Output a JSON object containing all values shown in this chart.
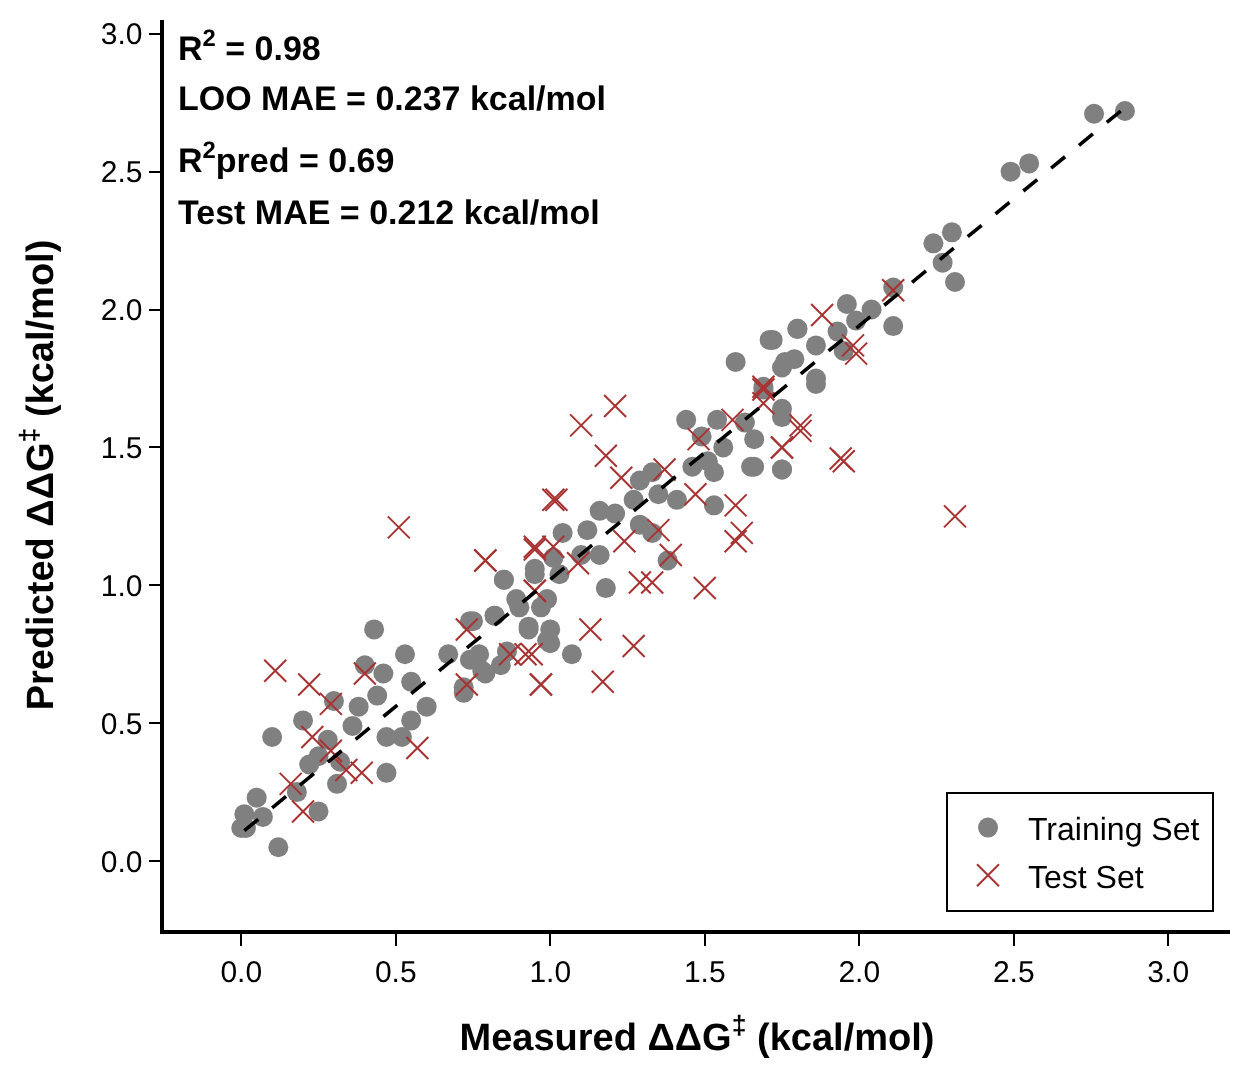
{
  "chart_data": {
    "type": "scatter",
    "xlabel": "Measured ΔΔG$^{‡}$ (kcal/mol)",
    "ylabel": "Predicted ΔΔG$^{‡}$ (kcal/mol)",
    "annotations": [
      "R$^{2}$ = 0.98",
      "LOO MAE = 0.237 kcal/mol",
      "R$^{2}$pred = 0.69",
      "Test MAE = 0.212 kcal/mol"
    ],
    "xlim": [
      -0.25,
      3.2
    ],
    "ylim": [
      -0.25,
      3.05
    ],
    "xticks": [
      {
        "value": 0,
        "label": "0.0"
      },
      0.5,
      {
        "value": 1,
        "label": "1.0"
      },
      1.5,
      {
        "value": 2,
        "label": "2.0"
      },
      2.5,
      {
        "value": 3,
        "label": "3.0"
      }
    ],
    "yticks": [
      {
        "value": 0,
        "label": "0.0"
      },
      0.5,
      {
        "value": 1,
        "label": "1.0"
      },
      1.5,
      {
        "value": 2,
        "label": "2.0"
      },
      2.5,
      {
        "value": 3,
        "label": "3.0"
      }
    ],
    "grid": false,
    "legend": "bottom right",
    "series": [
      {
        "name": "Training Set",
        "color": "#808080",
        "marker": "circle",
        "x": [
          0.015,
          0.05,
          0.01,
          0.07,
          0.12,
          0.1,
          0.18,
          0.25,
          0.2,
          0.22,
          0.25,
          0.28,
          0.3,
          0.31,
          0.32,
          0.38,
          0.4,
          0.36,
          0.43,
          0.44,
          0.46,
          0.47,
          0.47,
          0.53,
          0.55,
          0.55,
          0.6,
          0.52,
          0.67,
          0.75,
          0.72,
          0.78,
          0.74,
          0.84,
          0.82,
          0.85,
          0.9,
          0.93,
          0.95,
          0.99,
          0.99,
          1.6,
          1.71,
          1.8,
          1.76,
          1.86,
          1.75,
          1.69,
          1.44,
          1.54,
          1.63,
          1.49,
          1.56,
          1.65,
          1.75,
          1.51,
          1.53,
          1.46,
          1.33,
          1.29,
          1.27,
          1.35,
          1.41,
          1.53,
          1.21,
          1.16,
          1.29,
          1.33,
          1.12,
          1.04,
          1.1,
          1.16,
          1.01,
          1.03,
          1.38,
          1.18,
          0.95,
          0.85,
          0.89,
          0.97,
          0.82,
          0.93,
          1.0,
          1.0,
          1.07,
          0.86,
          0.77,
          0.79,
          0.72,
          0.74,
          2.86,
          2.76,
          2.55,
          2.49,
          2.3,
          2.24,
          2.27,
          2.31,
          2.11,
          2.11,
          2.04,
          1.96,
          1.99,
          1.93,
          1.8,
          1.72,
          1.86,
          1.95,
          1.79,
          1.75,
          1.86,
          1.69,
          1.75,
          1.66,
          1.66,
          1.75,
          0.0
        ],
        "values": [
          0.12,
          0.23,
          0.17,
          0.16,
          0.05,
          0.45,
          0.25,
          0.18,
          0.51,
          0.35,
          0.38,
          0.44,
          0.58,
          0.28,
          0.36,
          0.56,
          0.71,
          0.49,
          0.84,
          0.6,
          0.68,
          0.45,
          0.32,
          0.75,
          0.65,
          0.51,
          0.56,
          0.45,
          0.75,
          0.87,
          0.61,
          0.69,
          0.73,
          0.71,
          0.89,
          1.02,
          0.92,
          0.84,
          1.04,
          0.8,
          0.95,
          1.81,
          1.89,
          1.93,
          1.81,
          1.75,
          1.64,
          1.71,
          1.6,
          1.6,
          1.59,
          1.54,
          1.5,
          1.43,
          1.42,
          1.45,
          1.41,
          1.43,
          1.41,
          1.38,
          1.31,
          1.33,
          1.31,
          1.29,
          1.26,
          1.27,
          1.22,
          1.19,
          1.2,
          1.19,
          1.11,
          1.11,
          1.1,
          1.04,
          1.09,
          0.99,
          1.06,
          1.02,
          0.95,
          0.92,
          0.89,
          0.85,
          0.84,
          0.79,
          0.75,
          0.76,
          0.75,
          0.68,
          0.63,
          0.87,
          2.72,
          2.71,
          2.53,
          2.5,
          2.28,
          2.24,
          2.17,
          2.1,
          2.08,
          1.94,
          2.0,
          2.02,
          1.96,
          1.92,
          1.93,
          1.89,
          1.87,
          1.85,
          1.82,
          1.79,
          1.73,
          1.72,
          1.61,
          1.53,
          1.43,
          1.42,
          0.12
        ]
      },
      {
        "name": "Test Set",
        "color": "#a83232",
        "marker": "cross",
        "x": [
          0.51,
          0.11,
          0.22,
          0.29,
          0.23,
          0.29,
          0.16,
          0.2,
          0.34,
          0.39,
          0.4,
          0.57,
          0.73,
          0.73,
          0.79,
          0.87,
          0.94,
          0.97,
          0.95,
          0.95,
          1.01,
          1.88,
          1.21,
          1.1,
          1.18,
          1.23,
          1.02,
          1.37,
          1.47,
          1.6,
          1.69,
          1.81,
          1.75,
          1.94,
          1.59,
          1.48,
          0.79,
          0.95,
          1.01,
          1.09,
          1.24,
          1.35,
          1.39,
          1.6,
          1.62,
          1.29,
          1.33,
          1.5,
          0.95,
          1.13,
          1.27,
          1.17,
          0.97,
          0.92,
          2.11,
          1.98,
          1.99,
          1.69,
          1.69,
          1.81,
          1.75,
          1.95,
          2.31
        ],
        "values": [
          1.21,
          0.69,
          0.64,
          0.57,
          0.45,
          0.4,
          0.28,
          0.18,
          0.33,
          0.32,
          0.68,
          0.41,
          0.84,
          0.64,
          1.09,
          0.75,
          0.75,
          0.64,
          0.98,
          1.13,
          1.31,
          1.98,
          1.65,
          1.58,
          1.47,
          1.39,
          1.31,
          1.42,
          1.33,
          1.29,
          1.72,
          1.56,
          1.5,
          1.46,
          1.6,
          1.53,
          1.09,
          1.14,
          1.14,
          1.08,
          1.16,
          1.2,
          1.11,
          1.16,
          1.19,
          1.01,
          1.01,
          0.99,
          0.98,
          0.84,
          0.78,
          0.65,
          0.64,
          0.75,
          2.07,
          1.87,
          1.84,
          1.71,
          1.66,
          1.58,
          1.5,
          1.45,
          1.25
        ]
      },
      {
        "type": "line",
        "color": "#000000",
        "marker": "none",
        "line_style": "dashed",
        "x": [
          0.01,
          2.89
        ],
        "values": [
          0.11,
          2.76
        ]
      }
    ]
  }
}
